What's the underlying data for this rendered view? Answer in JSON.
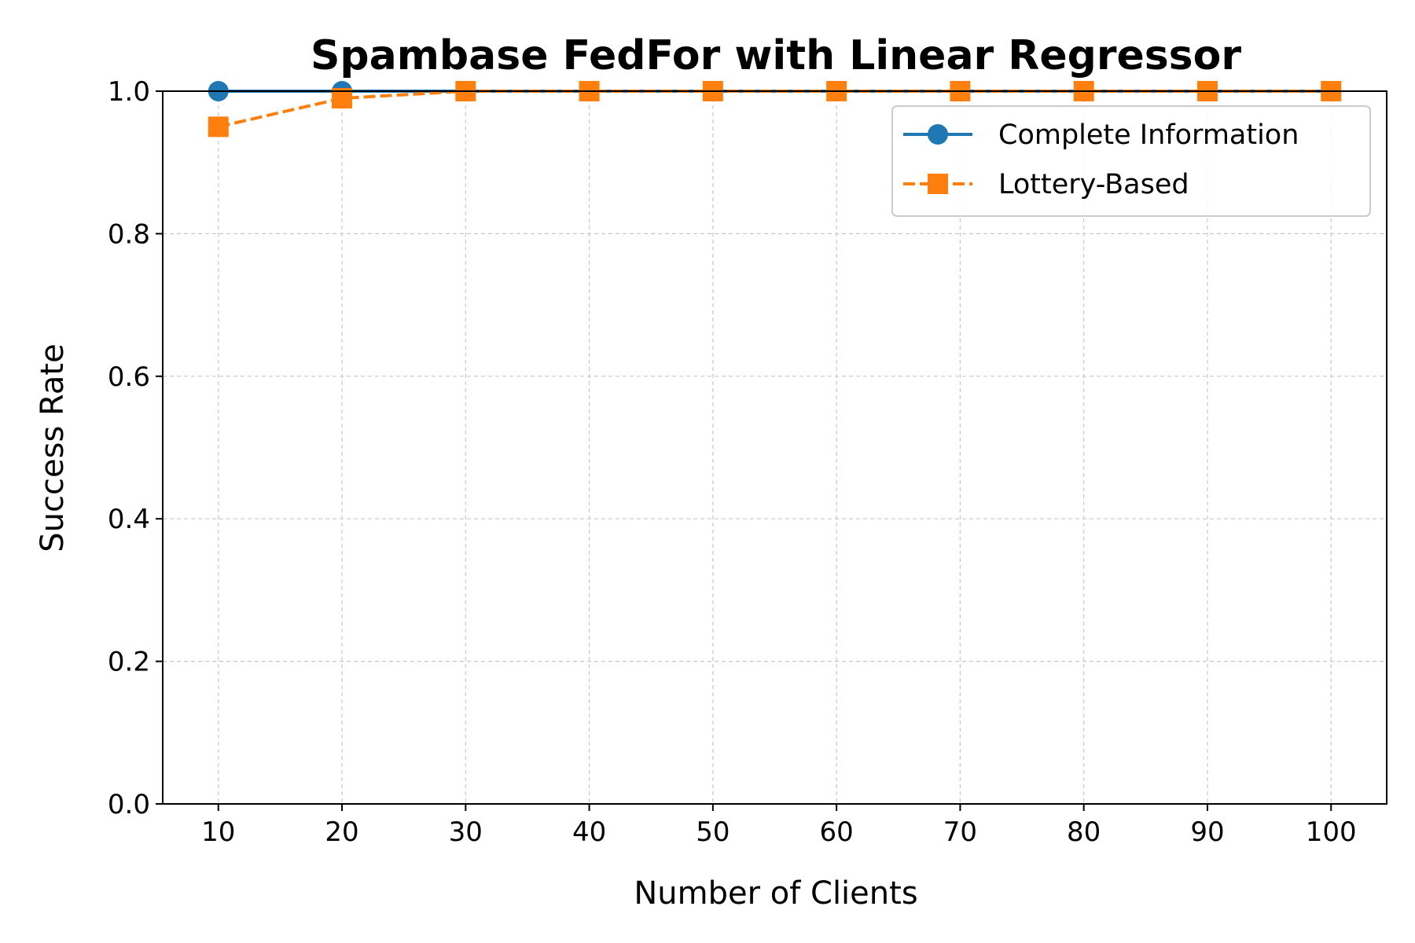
{
  "chart_data": {
    "type": "line",
    "title": "Spambase FedFor with Linear Regressor",
    "xlabel": "Number of Clients",
    "ylabel": "Success Rate",
    "x": [
      10,
      20,
      30,
      40,
      50,
      60,
      70,
      80,
      90,
      100
    ],
    "x_tick_labels": [
      "10",
      "20",
      "30",
      "40",
      "50",
      "60",
      "70",
      "80",
      "90",
      "100"
    ],
    "y_tick_values": [
      0.0,
      0.2,
      0.4,
      0.6,
      0.8,
      1.0
    ],
    "y_tick_labels": [
      "0.0",
      "0.2",
      "0.4",
      "0.6",
      "0.8",
      "1.0"
    ],
    "xlim": [
      5.5,
      104.5
    ],
    "ylim": [
      0.0,
      1.0
    ],
    "grid": true,
    "legend_position": "top-right",
    "series": [
      {
        "name": "Complete Information",
        "values": [
          1.0,
          1.0,
          1.0,
          1.0,
          1.0,
          1.0,
          1.0,
          1.0,
          1.0,
          1.0
        ],
        "color": "#1f77b4",
        "line_style": "solid",
        "marker": "circle"
      },
      {
        "name": "Lottery-Based",
        "values": [
          0.95,
          0.99,
          1.0,
          1.0,
          1.0,
          1.0,
          1.0,
          1.0,
          1.0,
          1.0
        ],
        "color": "#ff7f0e",
        "line_style": "dashed",
        "marker": "square"
      }
    ]
  }
}
